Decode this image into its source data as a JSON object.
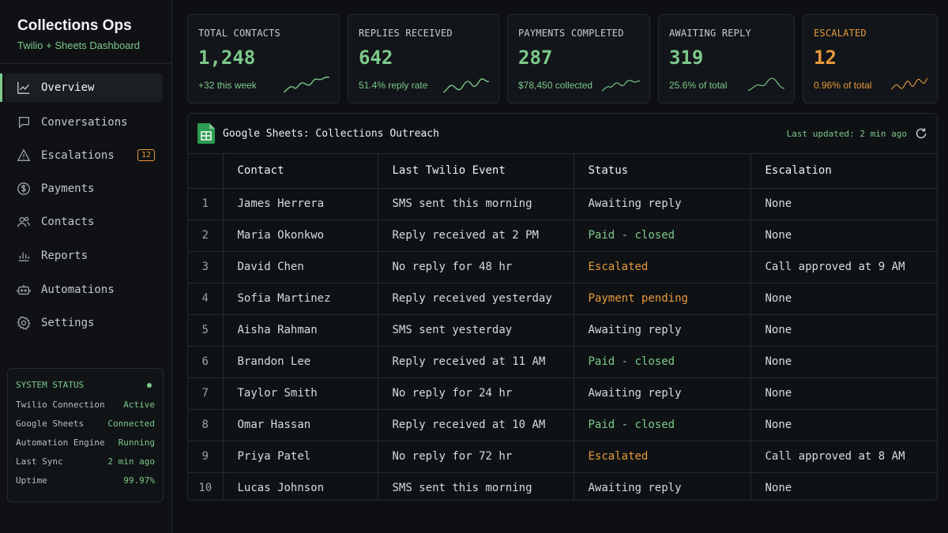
{
  "brand": {
    "title": "Collections Ops",
    "subtitle": "Twilio + Sheets Dashboard"
  },
  "nav": [
    {
      "label": "Overview",
      "icon": "chart-line-icon",
      "active": true
    },
    {
      "label": "Conversations",
      "icon": "chat-bubble-icon"
    },
    {
      "label": "Escalations",
      "icon": "warning-triangle-icon",
      "badge": "12"
    },
    {
      "label": "Payments",
      "icon": "dollar-circle-icon"
    },
    {
      "label": "Contacts",
      "icon": "users-icon"
    },
    {
      "label": "Reports",
      "icon": "bar-chart-icon"
    },
    {
      "label": "Automations",
      "icon": "robot-icon"
    },
    {
      "label": "Settings",
      "icon": "gear-icon"
    }
  ],
  "system_status": {
    "title": "SYSTEM STATUS",
    "rows": [
      {
        "key": "Twilio Connection",
        "value": "Active"
      },
      {
        "key": "Google Sheets",
        "value": "Connected"
      },
      {
        "key": "Automation Engine",
        "value": "Running"
      },
      {
        "key": "Last Sync",
        "value": "2 min ago"
      },
      {
        "key": "Uptime",
        "value": "99.97%"
      }
    ]
  },
  "stats": [
    {
      "label": "TOTAL CONTACTS",
      "value": "1,248",
      "sub": "+32 this week",
      "color": "#7dc98a"
    },
    {
      "label": "REPLIES RECEIVED",
      "value": "642",
      "sub": "51.4% reply rate",
      "color": "#7dc98a"
    },
    {
      "label": "PAYMENTS COMPLETED",
      "value": "287",
      "sub": "$78,450 collected",
      "color": "#7dc98a"
    },
    {
      "label": "AWAITING REPLY",
      "value": "319",
      "sub": "25.6% of total",
      "color": "#7dc98a"
    },
    {
      "label": "ESCALATED",
      "value": "12",
      "sub": "0.96% of total",
      "color": "#e89a3c"
    }
  ],
  "sheet": {
    "title": "Google Sheets: Collections Outreach",
    "updated": "Last updated: 2 min ago",
    "columns": [
      "Contact",
      "Last Twilio Event",
      "Status",
      "Escalation"
    ],
    "rows": [
      {
        "n": "1",
        "contact": "James Herrera",
        "event": "SMS sent this morning",
        "status": "Awaiting reply",
        "tone": "neutral",
        "escalation": "None"
      },
      {
        "n": "2",
        "contact": "Maria Okonkwo",
        "event": "Reply received at 2 PM",
        "status": "Paid - closed",
        "tone": "green",
        "escalation": "None"
      },
      {
        "n": "3",
        "contact": "David Chen",
        "event": "No reply for 48 hr",
        "status": "Escalated",
        "tone": "orange",
        "escalation": "Call approved at 9 AM"
      },
      {
        "n": "4",
        "contact": "Sofia Martinez",
        "event": "Reply received yesterday",
        "status": "Payment pending",
        "tone": "orange",
        "escalation": "None"
      },
      {
        "n": "5",
        "contact": "Aisha Rahman",
        "event": "SMS sent yesterday",
        "status": "Awaiting reply",
        "tone": "neutral",
        "escalation": "None"
      },
      {
        "n": "6",
        "contact": "Brandon Lee",
        "event": "Reply received at 11 AM",
        "status": "Paid - closed",
        "tone": "green",
        "escalation": "None"
      },
      {
        "n": "7",
        "contact": "Taylor Smith",
        "event": "No reply for 24 hr",
        "status": "Awaiting reply",
        "tone": "neutral",
        "escalation": "None"
      },
      {
        "n": "8",
        "contact": "Omar Hassan",
        "event": "Reply received at 10 AM",
        "status": "Paid - closed",
        "tone": "green",
        "escalation": "None"
      },
      {
        "n": "9",
        "contact": "Priya Patel",
        "event": "No reply for 72 hr",
        "status": "Escalated",
        "tone": "orange",
        "escalation": "Call approved at 8 AM"
      },
      {
        "n": "10",
        "contact": "Lucas Johnson",
        "event": "SMS sent this morning",
        "status": "Awaiting reply",
        "tone": "neutral",
        "escalation": "None"
      }
    ]
  }
}
